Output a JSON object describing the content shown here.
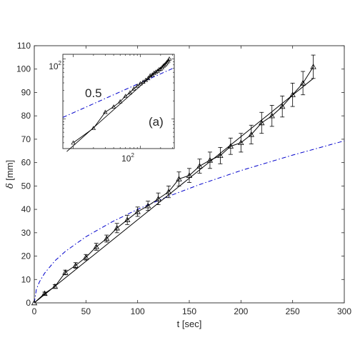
{
  "chart_data": [
    {
      "type": "line",
      "panel": "main",
      "title": "",
      "xlabel": "t [sec]",
      "ylabel_symbol": "δ",
      "ylabel_unit": " [mm]",
      "xlim": [
        0,
        300
      ],
      "ylim": [
        0,
        110
      ],
      "xticks": [
        0,
        50,
        100,
        150,
        200,
        250,
        300
      ],
      "yticks": [
        0,
        10,
        20,
        30,
        40,
        50,
        60,
        70,
        80,
        90,
        100,
        110
      ],
      "grid": false,
      "colors": {
        "data": "#000000",
        "fit": "#0000cc",
        "frame": "#262626"
      },
      "series": [
        {
          "style": "line with triangle markers and error bars",
          "x": [
            0,
            10,
            20,
            30,
            40,
            50,
            60,
            70,
            80,
            90,
            100,
            110,
            120,
            130,
            140,
            150,
            160,
            170,
            180,
            190,
            200,
            210,
            220,
            230,
            240,
            250,
            260,
            270
          ],
          "y": [
            0,
            4,
            7,
            13,
            16,
            19.5,
            24,
            27.5,
            32,
            35.5,
            39,
            41.5,
            44.5,
            47.5,
            53,
            54.5,
            58.5,
            61,
            63,
            67,
            68.5,
            72,
            77,
            80,
            84,
            89,
            94,
            101
          ],
          "error": [
            0,
            0.6,
            0.8,
            1,
            1.2,
            1.2,
            1.5,
            1.5,
            2,
            2,
            2,
            2,
            2.5,
            2.5,
            3,
            3,
            3,
            3.5,
            3.5,
            3.5,
            4,
            4,
            4.5,
            4.5,
            4.5,
            5,
            5,
            5
          ]
        },
        {
          "style": "straight line",
          "x": [
            0,
            270
          ],
          "y": [
            0,
            96
          ]
        },
        {
          "style": "dash-dot power-law fit",
          "x": [
            0,
            2,
            5,
            10,
            20,
            30,
            50,
            75,
            100,
            130,
            160,
            200,
            250,
            300
          ],
          "y": [
            0,
            5.7,
            9,
            12.7,
            18,
            22,
            28.3,
            34.6,
            40,
            45.6,
            50.6,
            56.6,
            63.2,
            69.3
          ]
        }
      ]
    },
    {
      "type": "line",
      "panel": "inset",
      "title": "",
      "xlabel": "",
      "ylabel": "",
      "xscale": "log",
      "yscale": "log",
      "xlim": [
        7,
        320
      ],
      "ylim": [
        3.2,
        120
      ],
      "xticks": [
        100
      ],
      "xtick_labels": [
        {
          "base": "10",
          "exp": "2"
        }
      ],
      "yticks": [
        100
      ],
      "ytick_labels": [
        {
          "base": "10",
          "exp": "2"
        }
      ],
      "annotations": {
        "slope_label": "0.5",
        "panel_label": "(a)"
      },
      "series": [
        {
          "style": "line with triangle markers",
          "x": [
            10,
            20,
            30,
            40,
            50,
            60,
            70,
            80,
            90,
            100,
            110,
            120,
            130,
            140,
            150,
            160,
            170,
            180,
            190,
            200,
            210,
            220,
            230,
            240,
            250,
            260,
            270
          ],
          "y": [
            4,
            7,
            13,
            16,
            19.5,
            24,
            27.5,
            32,
            35.5,
            39,
            41.5,
            44.5,
            47.5,
            53,
            54.5,
            58.5,
            61,
            63,
            67,
            68.5,
            72,
            77,
            80,
            84,
            89,
            94,
            101
          ]
        },
        {
          "style": "straight line",
          "x": [
            8,
            270
          ],
          "y": [
            2.85,
            96
          ]
        },
        {
          "style": "dash-dot power-law fit",
          "x": [
            7,
            320
          ],
          "y": [
            10.6,
            71.6
          ]
        }
      ]
    }
  ]
}
